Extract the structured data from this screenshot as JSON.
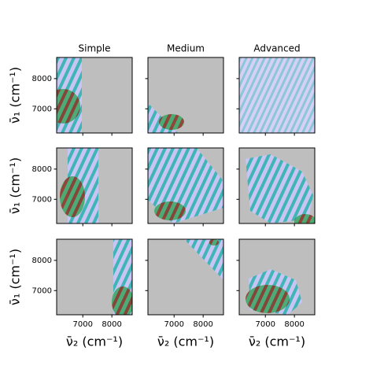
{
  "chart_data": {
    "type": "spectra-grid",
    "columns": [
      "Simple",
      "Medium",
      "Advanced"
    ],
    "xlabel": "ν̄₂ (cm⁻¹)",
    "ylabel": "ν̄₁ (cm⁻¹)",
    "xlim": [
      6100,
      8700
    ],
    "ylim": [
      6200,
      8700
    ],
    "xticks": [
      7000,
      8000
    ],
    "yticks": [
      7000,
      8000
    ]
  }
}
